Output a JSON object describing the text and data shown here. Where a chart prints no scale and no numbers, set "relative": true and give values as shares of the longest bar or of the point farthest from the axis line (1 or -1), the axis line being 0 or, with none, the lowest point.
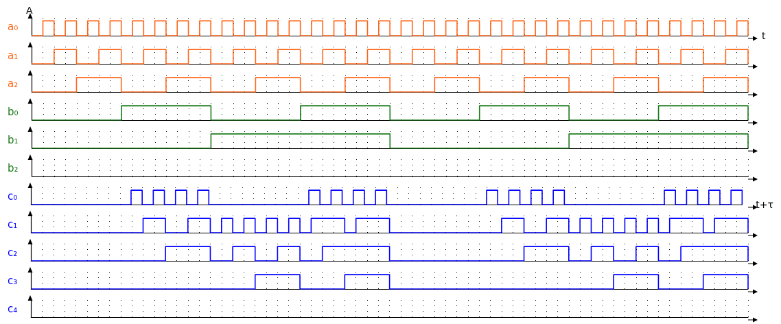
{
  "chart_data": [
    {
      "type": "step",
      "relative": true,
      "grid": "x",
      "ylabel": "a₀",
      "xlabel": "t",
      "annotations": [
        "A"
      ],
      "categories": [
        null,
        null,
        null,
        null,
        null,
        null,
        null,
        null,
        null,
        null,
        null,
        null,
        null,
        null,
        null,
        null,
        null,
        null,
        null,
        null,
        null,
        null,
        null,
        null,
        null,
        null,
        null,
        null,
        null,
        null,
        null,
        null,
        null,
        null,
        null,
        null,
        null,
        null,
        null,
        null,
        null,
        null,
        null,
        null,
        null,
        null,
        null,
        null,
        null,
        null,
        null,
        null,
        null,
        null,
        null,
        null,
        null,
        null,
        null,
        null,
        null,
        null,
        null,
        null,
        null
      ],
      "series": [
        {
          "color": "#ff6619",
          "values": [
            0,
            1,
            0,
            1,
            0,
            1,
            0,
            1,
            0,
            1,
            0,
            1,
            0,
            1,
            0,
            1,
            0,
            1,
            0,
            1,
            0,
            1,
            0,
            1,
            0,
            1,
            0,
            1,
            0,
            1,
            0,
            1,
            0,
            1,
            0,
            1,
            0,
            1,
            0,
            1,
            0,
            1,
            0,
            1,
            0,
            1,
            0,
            1,
            0,
            1,
            0,
            1,
            0,
            1,
            0,
            1,
            0,
            1,
            0,
            1,
            0,
            1,
            0,
            1,
            0
          ]
        }
      ]
    },
    {
      "type": "step",
      "relative": true,
      "grid": "x",
      "ylabel": "a₁",
      "categories": [
        null,
        null,
        null,
        null,
        null,
        null,
        null,
        null,
        null,
        null,
        null,
        null,
        null,
        null,
        null,
        null,
        null,
        null,
        null,
        null,
        null,
        null,
        null,
        null,
        null,
        null,
        null,
        null,
        null,
        null,
        null,
        null,
        null,
        null,
        null,
        null,
        null,
        null,
        null,
        null,
        null,
        null,
        null,
        null,
        null,
        null,
        null,
        null,
        null,
        null,
        null,
        null,
        null,
        null,
        null,
        null,
        null,
        null,
        null,
        null,
        null,
        null,
        null,
        null,
        null
      ],
      "series": [
        {
          "color": "#ff6619",
          "values": [
            0,
            0,
            1,
            1,
            0,
            0,
            1,
            1,
            0,
            0,
            1,
            1,
            0,
            0,
            1,
            1,
            0,
            0,
            1,
            1,
            0,
            0,
            1,
            1,
            0,
            0,
            1,
            1,
            0,
            0,
            1,
            1,
            0,
            0,
            1,
            1,
            0,
            0,
            1,
            1,
            0,
            0,
            1,
            1,
            0,
            0,
            1,
            1,
            0,
            0,
            1,
            1,
            0,
            0,
            1,
            1,
            0,
            0,
            1,
            1,
            0,
            0,
            1,
            1,
            0
          ]
        }
      ]
    },
    {
      "type": "step",
      "relative": true,
      "grid": "x",
      "ylabel": "a₂",
      "categories": [
        null,
        null,
        null,
        null,
        null,
        null,
        null,
        null,
        null,
        null,
        null,
        null,
        null,
        null,
        null,
        null,
        null,
        null,
        null,
        null,
        null,
        null,
        null,
        null,
        null,
        null,
        null,
        null,
        null,
        null,
        null,
        null,
        null,
        null,
        null,
        null,
        null,
        null,
        null,
        null,
        null,
        null,
        null,
        null,
        null,
        null,
        null,
        null,
        null,
        null,
        null,
        null,
        null,
        null,
        null,
        null,
        null,
        null,
        null,
        null,
        null,
        null,
        null,
        null,
        null
      ],
      "series": [
        {
          "color": "#ff6619",
          "values": [
            0,
            0,
            0,
            0,
            1,
            1,
            1,
            1,
            0,
            0,
            0,
            0,
            1,
            1,
            1,
            1,
            0,
            0,
            0,
            0,
            1,
            1,
            1,
            1,
            0,
            0,
            0,
            0,
            1,
            1,
            1,
            1,
            0,
            0,
            0,
            0,
            1,
            1,
            1,
            1,
            0,
            0,
            0,
            0,
            1,
            1,
            1,
            1,
            0,
            0,
            0,
            0,
            1,
            1,
            1,
            1,
            0,
            0,
            0,
            0,
            1,
            1,
            1,
            1,
            0
          ]
        }
      ]
    },
    {
      "type": "step",
      "relative": true,
      "grid": "x",
      "ylabel": "b₀",
      "categories": [
        null,
        null,
        null,
        null,
        null,
        null,
        null,
        null,
        null,
        null,
        null,
        null,
        null,
        null,
        null,
        null,
        null,
        null,
        null,
        null,
        null,
        null,
        null,
        null,
        null,
        null,
        null,
        null,
        null,
        null,
        null,
        null,
        null,
        null,
        null,
        null,
        null,
        null,
        null,
        null,
        null,
        null,
        null,
        null,
        null,
        null,
        null,
        null,
        null,
        null,
        null,
        null,
        null,
        null,
        null,
        null,
        null,
        null,
        null,
        null,
        null,
        null,
        null,
        null,
        null
      ],
      "series": [
        {
          "color": "#1a7a1a",
          "values": [
            0,
            0,
            0,
            0,
            0,
            0,
            0,
            0,
            1,
            1,
            1,
            1,
            1,
            1,
            1,
            1,
            0,
            0,
            0,
            0,
            0,
            0,
            0,
            0,
            1,
            1,
            1,
            1,
            1,
            1,
            1,
            1,
            0,
            0,
            0,
            0,
            0,
            0,
            0,
            0,
            1,
            1,
            1,
            1,
            1,
            1,
            1,
            1,
            0,
            0,
            0,
            0,
            0,
            0,
            0,
            0,
            1,
            1,
            1,
            1,
            1,
            1,
            1,
            1,
            0
          ]
        }
      ]
    },
    {
      "type": "step",
      "relative": true,
      "grid": "x",
      "ylabel": "b₁",
      "categories": [
        null,
        null,
        null,
        null,
        null,
        null,
        null,
        null,
        null,
        null,
        null,
        null,
        null,
        null,
        null,
        null,
        null,
        null,
        null,
        null,
        null,
        null,
        null,
        null,
        null,
        null,
        null,
        null,
        null,
        null,
        null,
        null,
        null,
        null,
        null,
        null,
        null,
        null,
        null,
        null,
        null,
        null,
        null,
        null,
        null,
        null,
        null,
        null,
        null,
        null,
        null,
        null,
        null,
        null,
        null,
        null,
        null,
        null,
        null,
        null,
        null,
        null,
        null,
        null,
        null
      ],
      "series": [
        {
          "color": "#1a7a1a",
          "values": [
            0,
            0,
            0,
            0,
            0,
            0,
            0,
            0,
            0,
            0,
            0,
            0,
            0,
            0,
            0,
            0,
            1,
            1,
            1,
            1,
            1,
            1,
            1,
            1,
            1,
            1,
            1,
            1,
            1,
            1,
            1,
            1,
            0,
            0,
            0,
            0,
            0,
            0,
            0,
            0,
            0,
            0,
            0,
            0,
            0,
            0,
            0,
            0,
            1,
            1,
            1,
            1,
            1,
            1,
            1,
            1,
            1,
            1,
            1,
            1,
            1,
            1,
            1,
            1,
            0
          ]
        }
      ]
    },
    {
      "type": "other",
      "ylabel": "b₂",
      "colors": [
        "#1a7a1a"
      ],
      "categories": [
        null,
        null,
        null,
        null,
        null,
        null,
        null,
        null,
        null,
        null,
        null,
        null,
        null,
        null,
        null,
        null,
        null,
        null,
        null,
        null,
        null,
        null,
        null,
        null,
        null,
        null,
        null,
        null,
        null,
        null,
        null,
        null,
        null,
        null,
        null,
        null,
        null,
        null,
        null,
        null,
        null,
        null,
        null,
        null,
        null,
        null,
        null,
        null,
        null,
        null,
        null,
        null,
        null,
        null,
        null,
        null,
        null,
        null,
        null,
        null,
        null,
        null,
        null,
        null,
        null
      ]
    },
    {
      "type": "step",
      "relative": true,
      "grid": "x",
      "ylabel": "c₀",
      "xlabel": "t+τ",
      "categories": [
        null,
        null,
        null,
        null,
        null,
        null,
        null,
        null,
        null,
        null,
        null,
        null,
        null,
        null,
        null,
        null,
        null,
        null,
        null,
        null,
        null,
        null,
        null,
        null,
        null,
        null,
        null,
        null,
        null,
        null,
        null,
        null,
        null,
        null,
        null,
        null,
        null,
        null,
        null,
        null,
        null,
        null,
        null,
        null,
        null,
        null,
        null,
        null,
        null,
        null,
        null,
        null,
        null,
        null,
        null,
        null,
        null,
        null,
        null,
        null,
        null,
        null,
        null,
        null,
        null
      ],
      "series": [
        {
          "color": "#0000ff",
          "values": [
            0,
            0,
            0,
            0,
            0,
            0,
            0,
            0,
            0,
            1,
            0,
            1,
            0,
            1,
            0,
            1,
            0,
            0,
            0,
            0,
            0,
            0,
            0,
            0,
            0,
            1,
            0,
            1,
            0,
            1,
            0,
            1,
            0,
            0,
            0,
            0,
            0,
            0,
            0,
            0,
            0,
            1,
            0,
            1,
            0,
            1,
            0,
            1,
            0,
            0,
            0,
            0,
            0,
            0,
            0,
            0,
            0,
            1,
            0,
            1,
            0,
            1,
            0,
            1,
            0
          ]
        }
      ]
    },
    {
      "type": "step",
      "relative": true,
      "grid": "x",
      "ylabel": "c₁",
      "categories": [
        null,
        null,
        null,
        null,
        null,
        null,
        null,
        null,
        null,
        null,
        null,
        null,
        null,
        null,
        null,
        null,
        null,
        null,
        null,
        null,
        null,
        null,
        null,
        null,
        null,
        null,
        null,
        null,
        null,
        null,
        null,
        null,
        null,
        null,
        null,
        null,
        null,
        null,
        null,
        null,
        null,
        null,
        null,
        null,
        null,
        null,
        null,
        null,
        null,
        null,
        null,
        null,
        null,
        null,
        null,
        null,
        null,
        null,
        null,
        null,
        null,
        null,
        null,
        null,
        null
      ],
      "series": [
        {
          "color": "#0000ff",
          "values": [
            0,
            0,
            0,
            0,
            0,
            0,
            0,
            0,
            0,
            0,
            1,
            1,
            0,
            0,
            1,
            1,
            0,
            1,
            0,
            1,
            0,
            1,
            0,
            1,
            0,
            1,
            1,
            1,
            0,
            1,
            1,
            1,
            0,
            0,
            0,
            0,
            0,
            0,
            0,
            0,
            0,
            0,
            1,
            1,
            0,
            0,
            1,
            1,
            0,
            1,
            0,
            1,
            0,
            1,
            0,
            1,
            0,
            1,
            1,
            1,
            0,
            1,
            1,
            1,
            0
          ]
        }
      ]
    },
    {
      "type": "step",
      "relative": true,
      "grid": "x",
      "ylabel": "c₂",
      "categories": [
        null,
        null,
        null,
        null,
        null,
        null,
        null,
        null,
        null,
        null,
        null,
        null,
        null,
        null,
        null,
        null,
        null,
        null,
        null,
        null,
        null,
        null,
        null,
        null,
        null,
        null,
        null,
        null,
        null,
        null,
        null,
        null,
        null,
        null,
        null,
        null,
        null,
        null,
        null,
        null,
        null,
        null,
        null,
        null,
        null,
        null,
        null,
        null,
        null,
        null,
        null,
        null,
        null,
        null,
        null,
        null,
        null,
        null,
        null,
        null,
        null,
        null,
        null,
        null,
        null
      ],
      "series": [
        {
          "color": "#0000ff",
          "values": [
            0,
            0,
            0,
            0,
            0,
            0,
            0,
            0,
            0,
            0,
            0,
            0,
            1,
            1,
            1,
            1,
            0,
            0,
            1,
            1,
            0,
            0,
            1,
            1,
            0,
            0,
            1,
            1,
            1,
            1,
            1,
            1,
            0,
            0,
            0,
            0,
            0,
            0,
            0,
            0,
            0,
            0,
            0,
            0,
            1,
            1,
            1,
            1,
            0,
            0,
            1,
            1,
            0,
            0,
            1,
            1,
            0,
            0,
            1,
            1,
            1,
            1,
            1,
            1,
            0
          ]
        }
      ]
    },
    {
      "type": "step",
      "relative": true,
      "grid": "x",
      "ylabel": "c₃",
      "categories": [
        null,
        null,
        null,
        null,
        null,
        null,
        null,
        null,
        null,
        null,
        null,
        null,
        null,
        null,
        null,
        null,
        null,
        null,
        null,
        null,
        null,
        null,
        null,
        null,
        null,
        null,
        null,
        null,
        null,
        null,
        null,
        null,
        null,
        null,
        null,
        null,
        null,
        null,
        null,
        null,
        null,
        null,
        null,
        null,
        null,
        null,
        null,
        null,
        null,
        null,
        null,
        null,
        null,
        null,
        null,
        null,
        null,
        null,
        null,
        null,
        null,
        null,
        null,
        null,
        null
      ],
      "series": [
        {
          "color": "#0000ff",
          "values": [
            0,
            0,
            0,
            0,
            0,
            0,
            0,
            0,
            0,
            0,
            0,
            0,
            0,
            0,
            0,
            0,
            0,
            0,
            0,
            0,
            1,
            1,
            1,
            1,
            0,
            0,
            0,
            0,
            1,
            1,
            1,
            1,
            0,
            0,
            0,
            0,
            0,
            0,
            0,
            0,
            0,
            0,
            0,
            0,
            0,
            0,
            0,
            0,
            0,
            0,
            0,
            0,
            1,
            1,
            1,
            1,
            0,
            0,
            0,
            0,
            1,
            1,
            1,
            1,
            0
          ]
        }
      ]
    },
    {
      "type": "other",
      "ylabel": "c₄",
      "colors": [
        "#0000ff"
      ],
      "categories": [
        null,
        null,
        null,
        null,
        null,
        null,
        null,
        null,
        null,
        null,
        null,
        null,
        null,
        null,
        null,
        null,
        null,
        null,
        null,
        null,
        null,
        null,
        null,
        null,
        null,
        null,
        null,
        null,
        null,
        null,
        null,
        null,
        null,
        null,
        null,
        null,
        null,
        null,
        null,
        null,
        null,
        null,
        null,
        null,
        null,
        null,
        null,
        null,
        null,
        null,
        null,
        null,
        null,
        null,
        null,
        null,
        null,
        null,
        null,
        null,
        null,
        null,
        null,
        null,
        null
      ]
    }
  ]
}
